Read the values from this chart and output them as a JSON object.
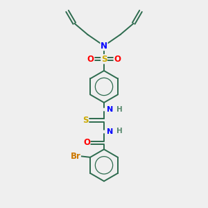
{
  "bg_color": "#efefef",
  "bond_color": "#2d6b4e",
  "atom_colors": {
    "N": "#0000ff",
    "O": "#ff0000",
    "S_thio": "#ccaa00",
    "S_sul": "#ccaa00",
    "Br": "#cc7700",
    "H": "#5a8a70"
  },
  "bond_width": 1.4,
  "font_size": 8.5
}
